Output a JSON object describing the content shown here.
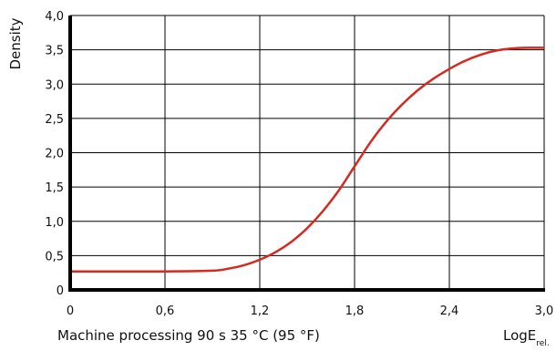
{
  "chart_data": {
    "type": "line",
    "ylabel": "Density",
    "xlabel": "LogE",
    "xlabel_sub": "rel.",
    "caption": "Machine processing 90 s 35 °C (95 °F)",
    "xlim": [
      0,
      3.0
    ],
    "ylim": [
      0,
      4.0
    ],
    "x_ticks": [
      "0",
      "0,6",
      "1,2",
      "1,8",
      "2,4",
      "3,0"
    ],
    "y_ticks": [
      "0",
      "0,5",
      "1,0",
      "1,5",
      "2,0",
      "2,5",
      "3,0",
      "3,5",
      "4,0"
    ],
    "grid": true,
    "series": [
      {
        "color": "#d42a20",
        "x": [
          0.0,
          0.3,
          0.6,
          0.9,
          1.0,
          1.1,
          1.2,
          1.3,
          1.4,
          1.5,
          1.6,
          1.7,
          1.8,
          1.9,
          2.0,
          2.1,
          2.2,
          2.3,
          2.4,
          2.5,
          2.6,
          2.7,
          2.8,
          2.9,
          3.0
        ],
        "y": [
          0.27,
          0.27,
          0.27,
          0.28,
          0.31,
          0.36,
          0.44,
          0.55,
          0.7,
          0.9,
          1.15,
          1.45,
          1.8,
          2.15,
          2.45,
          2.7,
          2.91,
          3.08,
          3.22,
          3.34,
          3.43,
          3.49,
          3.52,
          3.53,
          3.53
        ]
      }
    ]
  }
}
